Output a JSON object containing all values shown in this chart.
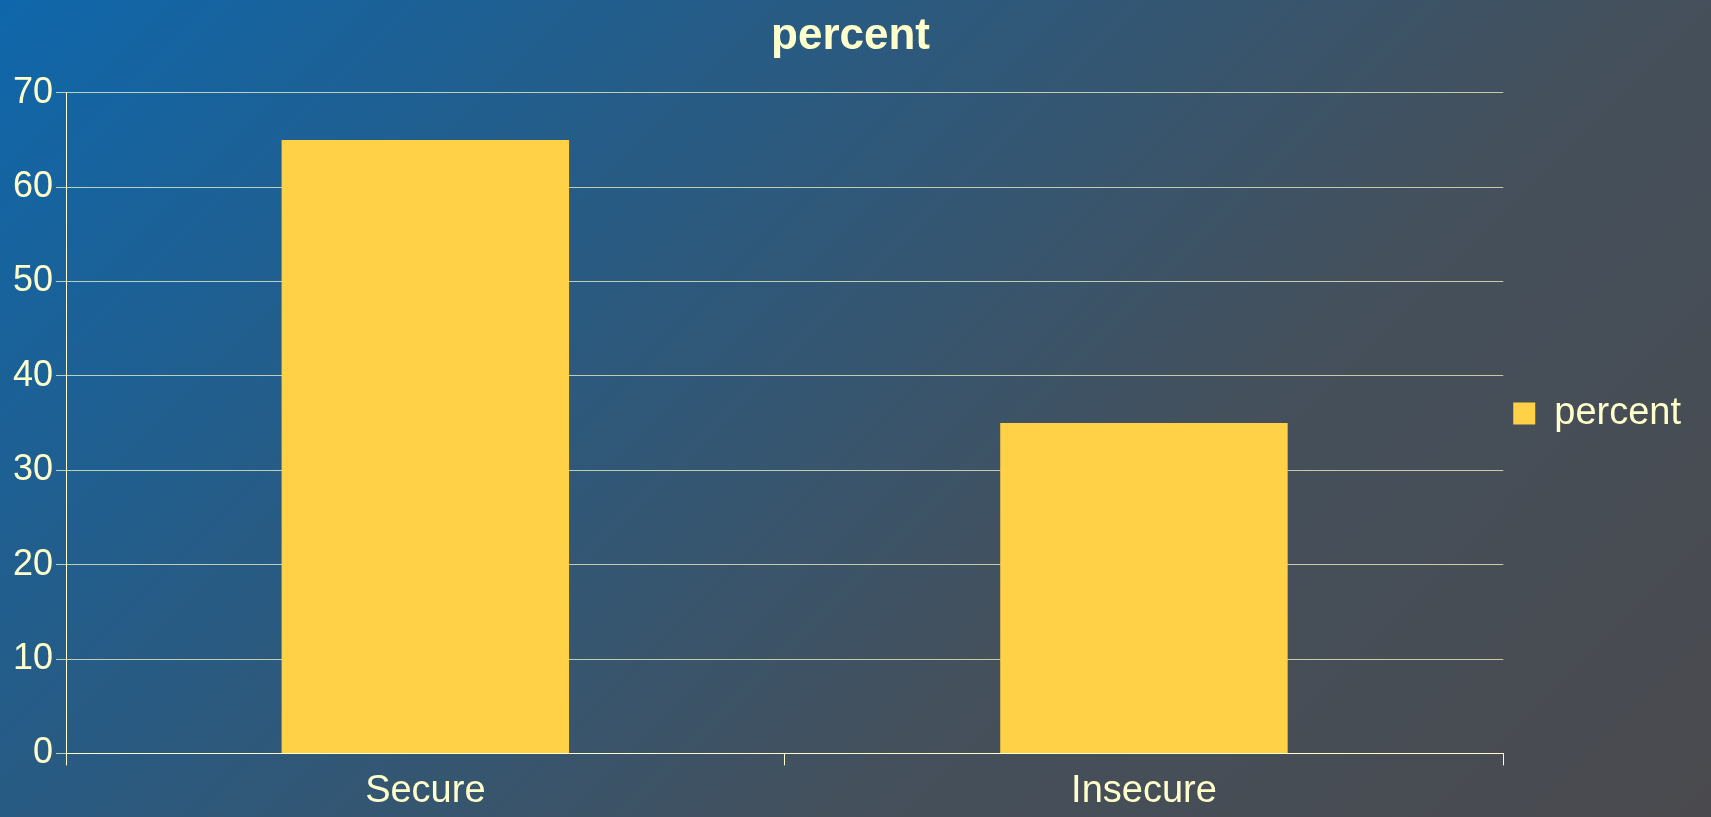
{
  "chart_data": {
    "type": "bar",
    "title": "percent",
    "categories": [
      "Secure",
      "Insecure"
    ],
    "series": [
      {
        "name": "percent",
        "color": "#ffd147",
        "values": [
          65,
          35
        ]
      }
    ],
    "ylim": [
      0,
      70
    ],
    "yticks": [
      0,
      10,
      20,
      30,
      40,
      50,
      60,
      70
    ],
    "grid": "y",
    "legend": "right"
  }
}
